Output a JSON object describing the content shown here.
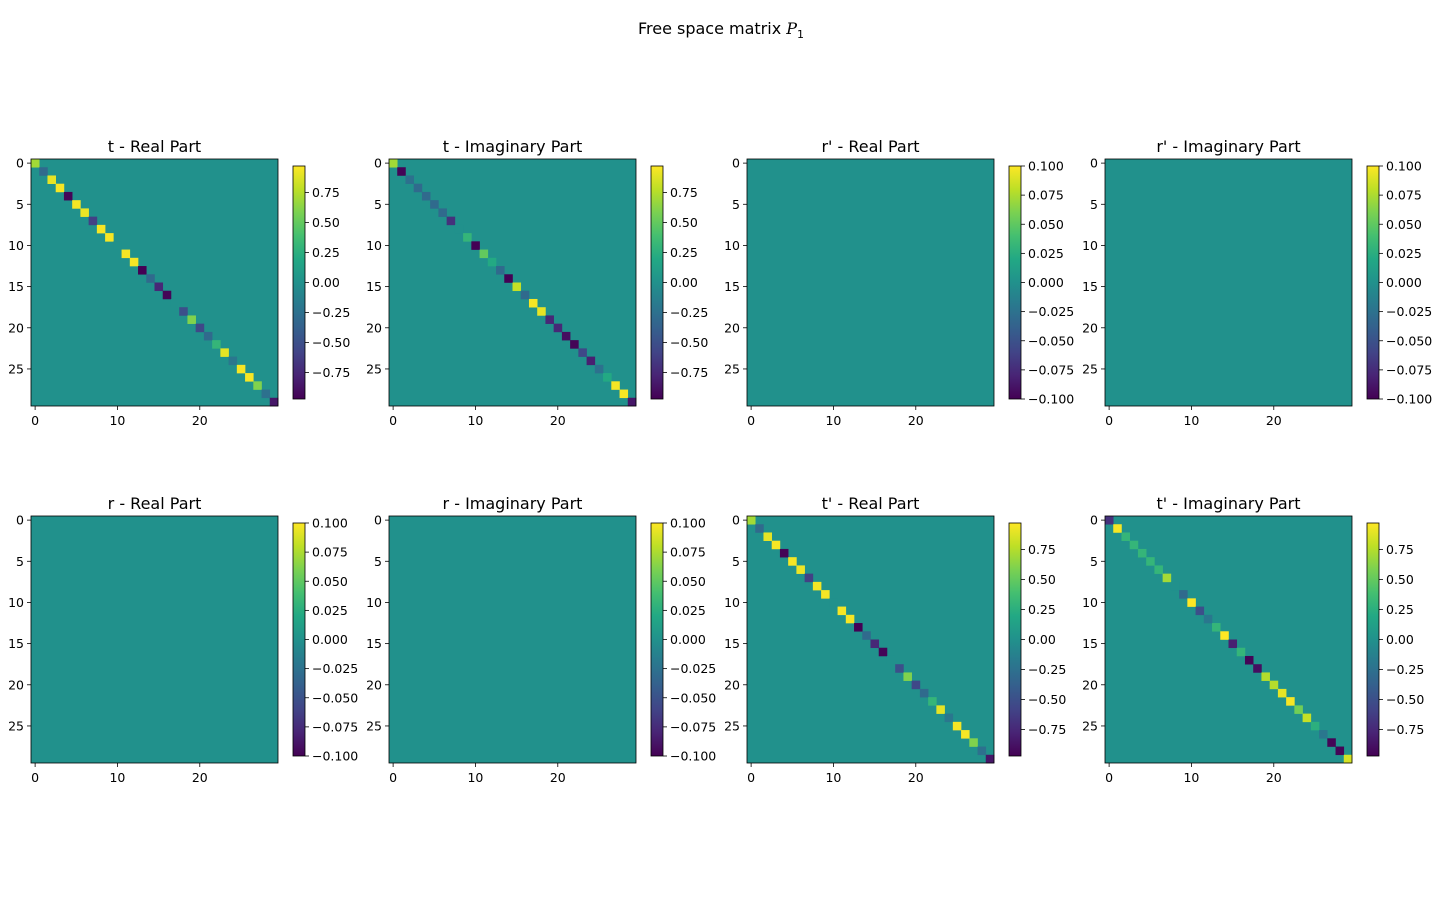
{
  "figure": {
    "title_prefix": "Free space matrix ",
    "title_symbol": "P",
    "title_subscript": "1"
  },
  "colormap": {
    "name": "viridis",
    "stops": [
      "#440154",
      "#482475",
      "#414487",
      "#355f8d",
      "#2a788e",
      "#21918c",
      "#22a884",
      "#44bf70",
      "#7ad151",
      "#bddf26",
      "#fde725"
    ]
  },
  "chart_data": [
    {
      "type": "heatmap",
      "title": "t - Real Part",
      "size": 30,
      "diagonal_only": true,
      "xticks": [
        0,
        10,
        20
      ],
      "yticks": [
        0,
        5,
        10,
        15,
        20,
        25
      ],
      "vmin": -0.97,
      "vmax": 0.97,
      "colorbar_ticks": [
        0.75,
        0.5,
        0.25,
        0.0,
        -0.25,
        -0.5,
        -0.75
      ],
      "colorbar_tick_labels": [
        "0.75",
        "0.50",
        "0.25",
        "0.00",
        "−0.25",
        "−0.50",
        "−0.75"
      ],
      "diagonal": [
        0.7,
        -0.3,
        0.9,
        0.95,
        -0.95,
        0.95,
        0.92,
        -0.6,
        0.95,
        0.95,
        0.0,
        0.95,
        0.95,
        -0.97,
        -0.3,
        -0.75,
        -0.95,
        0.0,
        -0.5,
        0.6,
        -0.55,
        -0.3,
        0.3,
        0.9,
        -0.2,
        0.95,
        0.95,
        0.6,
        -0.25,
        -0.85
      ]
    },
    {
      "type": "heatmap",
      "title": "t - Imaginary Part",
      "size": 30,
      "diagonal_only": true,
      "xticks": [
        0,
        10,
        20
      ],
      "yticks": [
        0,
        5,
        10,
        15,
        20,
        25
      ],
      "vmin": -0.97,
      "vmax": 0.97,
      "colorbar_ticks": [
        0.75,
        0.5,
        0.25,
        0.0,
        -0.25,
        -0.5,
        -0.75
      ],
      "colorbar_tick_labels": [
        "0.75",
        "0.50",
        "0.25",
        "0.00",
        "−0.25",
        "−0.50",
        "−0.75"
      ],
      "diagonal": [
        0.7,
        -0.95,
        -0.25,
        -0.3,
        -0.3,
        -0.3,
        -0.3,
        -0.7,
        0.0,
        0.3,
        -0.97,
        0.5,
        0.2,
        -0.3,
        -0.97,
        0.8,
        -0.3,
        0.95,
        0.9,
        -0.75,
        -0.75,
        -0.9,
        -0.95,
        -0.55,
        -0.8,
        -0.25,
        0.2,
        0.95,
        0.95,
        -0.85
      ]
    },
    {
      "type": "heatmap",
      "title": "r' - Real Part",
      "size": 30,
      "diagonal_only": false,
      "xticks": [
        0,
        10,
        20
      ],
      "yticks": [
        0,
        5,
        10,
        15,
        20,
        25
      ],
      "vmin": -0.1,
      "vmax": 0.1,
      "colorbar_ticks": [
        0.1,
        0.075,
        0.05,
        0.025,
        0.0,
        -0.025,
        -0.05,
        -0.075,
        -0.1
      ],
      "colorbar_tick_labels": [
        "0.100",
        "0.075",
        "0.050",
        "0.025",
        "0.000",
        "−0.025",
        "−0.050",
        "−0.075",
        "−0.100"
      ],
      "constant_value": 0.0
    },
    {
      "type": "heatmap",
      "title": "r' - Imaginary Part",
      "size": 30,
      "diagonal_only": false,
      "xticks": [
        0,
        10,
        20
      ],
      "yticks": [
        0,
        5,
        10,
        15,
        20,
        25
      ],
      "vmin": -0.1,
      "vmax": 0.1,
      "colorbar_ticks": [
        0.1,
        0.075,
        0.05,
        0.025,
        0.0,
        -0.025,
        -0.05,
        -0.075,
        -0.1
      ],
      "colorbar_tick_labels": [
        "0.100",
        "0.075",
        "0.050",
        "0.025",
        "0.000",
        "−0.025",
        "−0.050",
        "−0.075",
        "−0.100"
      ],
      "constant_value": 0.0
    },
    {
      "type": "heatmap",
      "title": "r - Real Part",
      "size": 30,
      "diagonal_only": false,
      "xticks": [
        0,
        10,
        20
      ],
      "yticks": [
        0,
        5,
        10,
        15,
        20,
        25
      ],
      "vmin": -0.1,
      "vmax": 0.1,
      "colorbar_ticks": [
        0.1,
        0.075,
        0.05,
        0.025,
        0.0,
        -0.025,
        -0.05,
        -0.075,
        -0.1
      ],
      "colorbar_tick_labels": [
        "0.100",
        "0.075",
        "0.050",
        "0.025",
        "0.000",
        "−0.025",
        "−0.050",
        "−0.075",
        "−0.100"
      ],
      "constant_value": 0.0
    },
    {
      "type": "heatmap",
      "title": "r - Imaginary Part",
      "size": 30,
      "diagonal_only": false,
      "xticks": [
        0,
        10,
        20
      ],
      "yticks": [
        0,
        5,
        10,
        15,
        20,
        25
      ],
      "vmin": -0.1,
      "vmax": 0.1,
      "colorbar_ticks": [
        0.1,
        0.075,
        0.05,
        0.025,
        0.0,
        -0.025,
        -0.05,
        -0.075,
        -0.1
      ],
      "colorbar_tick_labels": [
        "0.100",
        "0.075",
        "0.050",
        "0.025",
        "0.000",
        "−0.025",
        "−0.050",
        "−0.075",
        "−0.100"
      ],
      "constant_value": 0.0
    },
    {
      "type": "heatmap",
      "title": "t' - Real Part",
      "size": 30,
      "diagonal_only": true,
      "xticks": [
        0,
        10,
        20
      ],
      "yticks": [
        0,
        5,
        10,
        15,
        20,
        25
      ],
      "vmin": -0.97,
      "vmax": 0.97,
      "colorbar_ticks": [
        0.75,
        0.5,
        0.25,
        0.0,
        -0.25,
        -0.5,
        -0.75
      ],
      "colorbar_tick_labels": [
        "0.75",
        "0.50",
        "0.25",
        "0.00",
        "−0.25",
        "−0.50",
        "−0.75"
      ],
      "diagonal": [
        0.7,
        -0.3,
        0.9,
        0.95,
        -0.95,
        0.95,
        0.92,
        -0.6,
        0.95,
        0.95,
        0.0,
        0.95,
        0.95,
        -0.97,
        -0.3,
        -0.75,
        -0.95,
        0.0,
        -0.5,
        0.6,
        -0.55,
        -0.3,
        0.3,
        0.9,
        -0.2,
        0.95,
        0.95,
        0.6,
        -0.25,
        -0.85
      ]
    },
    {
      "type": "heatmap",
      "title": "t' - Imaginary Part",
      "size": 30,
      "diagonal_only": true,
      "xticks": [
        0,
        10,
        20
      ],
      "yticks": [
        0,
        5,
        10,
        15,
        20,
        25
      ],
      "vmin": -0.97,
      "vmax": 0.97,
      "colorbar_ticks": [
        0.75,
        0.5,
        0.25,
        0.0,
        -0.25,
        -0.5,
        -0.75
      ],
      "colorbar_tick_labels": [
        "0.75",
        "0.50",
        "0.25",
        "0.00",
        "−0.25",
        "−0.50",
        "−0.75"
      ],
      "diagonal": [
        -0.7,
        0.95,
        0.3,
        0.3,
        0.3,
        0.3,
        0.3,
        0.7,
        0.0,
        -0.3,
        0.97,
        -0.5,
        -0.2,
        0.3,
        0.97,
        -0.8,
        0.3,
        -0.95,
        -0.9,
        0.75,
        0.75,
        0.9,
        0.95,
        0.55,
        0.8,
        0.25,
        -0.2,
        -0.95,
        -0.95,
        0.85
      ]
    }
  ]
}
